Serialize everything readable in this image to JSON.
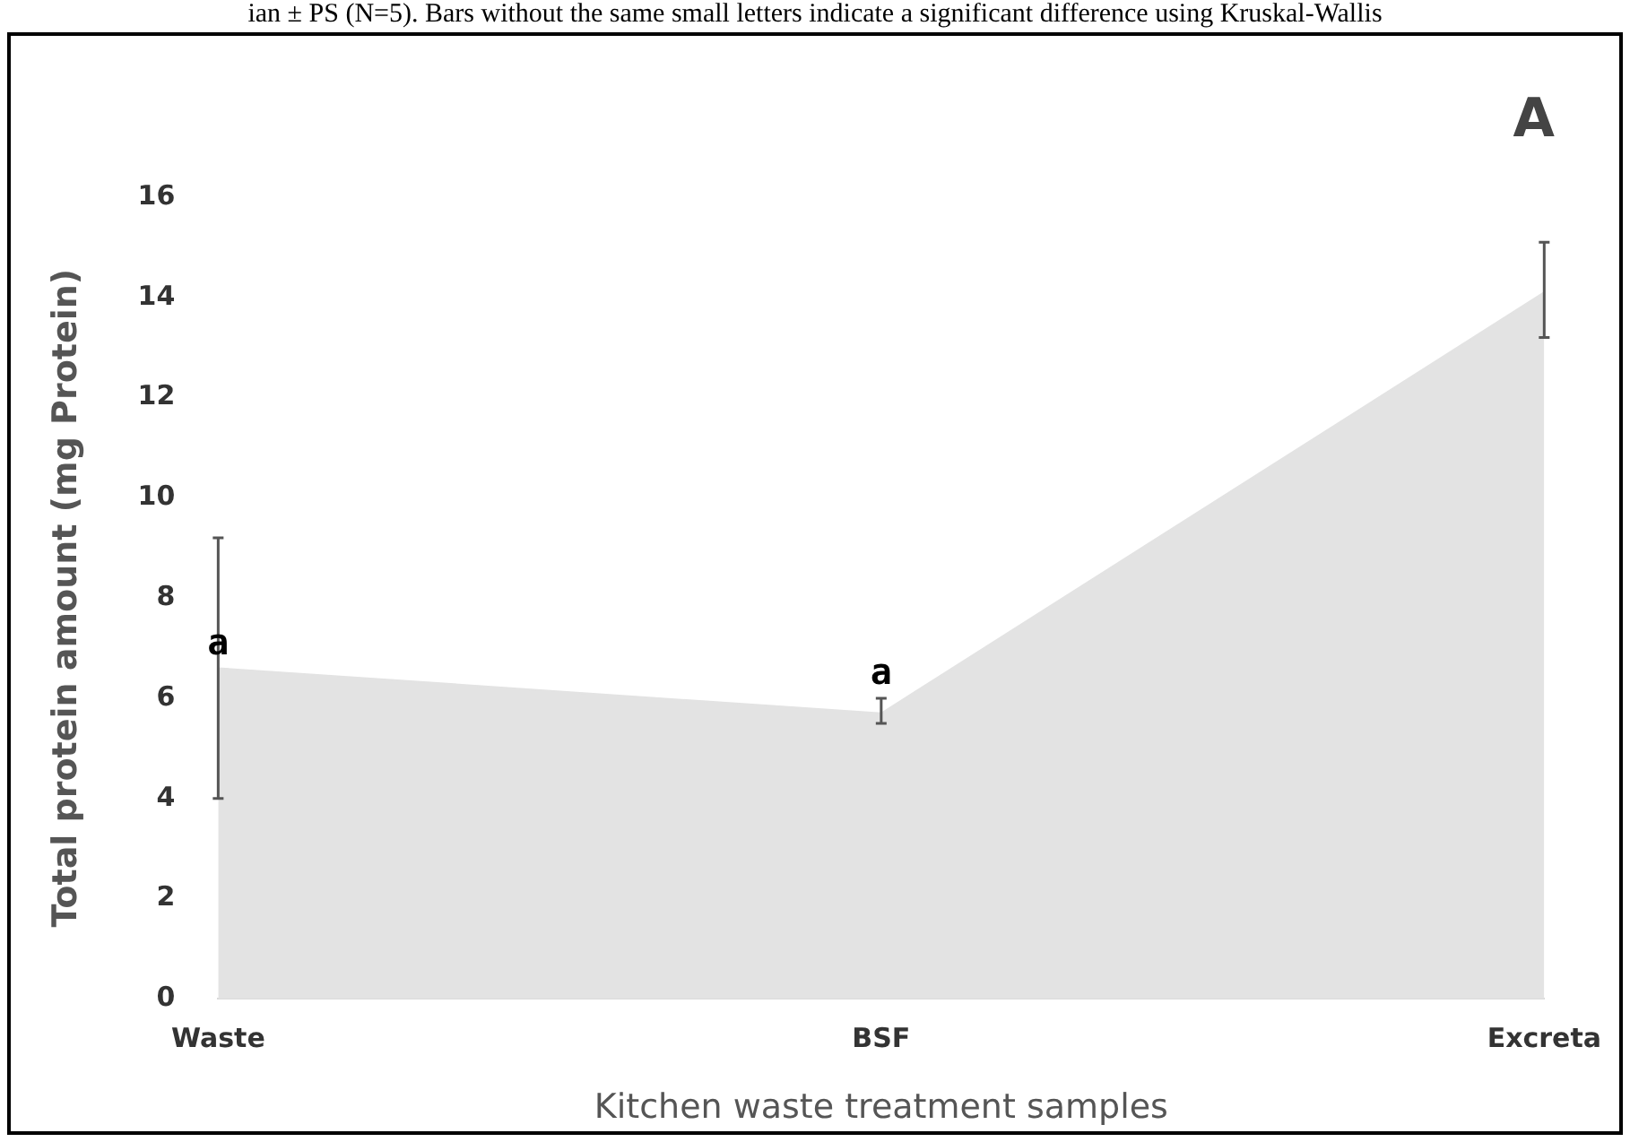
{
  "chart_data": {
    "type": "area",
    "title": "A",
    "xlabel": "Kitchen waste treatment samples",
    "ylabel": "Total protein amount (mg Protein)",
    "categories": [
      "Waste",
      "BSF",
      "Excreta"
    ],
    "series": [
      {
        "color": "#e3e3e3",
        "values": [
          6.6,
          5.7,
          14.1
        ],
        "errors": [
          [
            4.0,
            9.2
          ],
          [
            5.5,
            6.0
          ],
          [
            13.2,
            15.1
          ]
        ]
      }
    ],
    "ylim": [
      0,
      16
    ],
    "yticks": [
      0,
      2,
      4,
      6,
      8,
      10,
      12,
      14,
      16
    ],
    "grid": false,
    "legend": false,
    "annotations": [
      "ian ± PS (N=5). Bars without the same small letters indicate a significant difference using Kruskal-Wallis",
      {
        "text": "a",
        "x": "Waste",
        "y": 6.6
      },
      {
        "text": "a",
        "x": "BSF",
        "y": 6.0
      }
    ]
  }
}
